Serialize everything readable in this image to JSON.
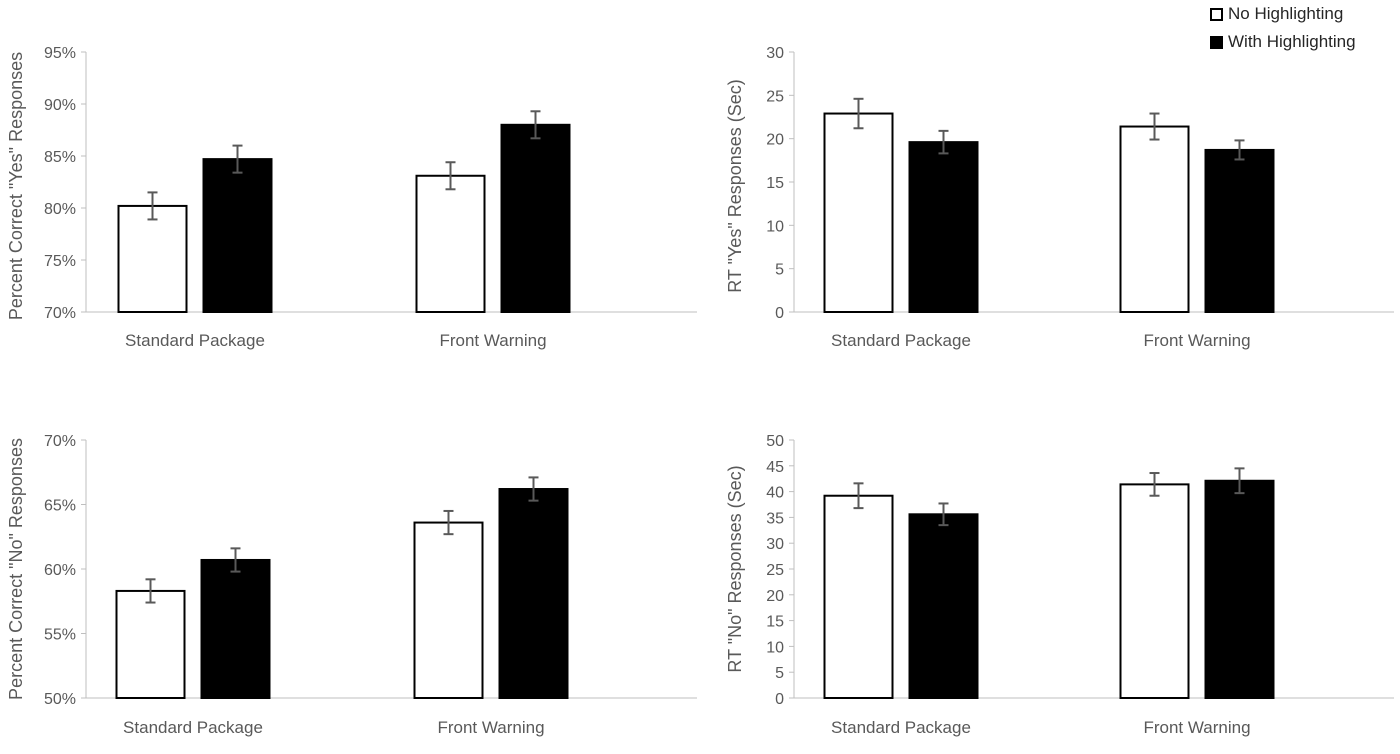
{
  "legend": {
    "no_highlighting": "No Highlighting",
    "with_highlighting": "With Highlighting",
    "no_highlighting_color": "#ffffff",
    "with_highlighting_color": "#000000"
  },
  "chart_data": [
    {
      "type": "bar",
      "ylabel": "Percent Correct \"Yes\" Responses",
      "categories": [
        "Standard Package",
        "Front Warning"
      ],
      "ylim": [
        70,
        95
      ],
      "yticks": [
        "70%",
        "75%",
        "80%",
        "85%",
        "90%",
        "95%"
      ],
      "tick_values": [
        70,
        75,
        80,
        85,
        90,
        95
      ],
      "series": [
        {
          "name": "No Highlighting",
          "values": [
            80.2,
            83.1
          ],
          "errors": [
            1.3,
            1.3
          ]
        },
        {
          "name": "With Highlighting",
          "values": [
            84.7,
            88.0
          ],
          "errors": [
            1.3,
            1.3
          ]
        }
      ]
    },
    {
      "type": "bar",
      "ylabel": "RT \"Yes\" Responses (Sec)",
      "categories": [
        "Standard Package",
        "Front Warning"
      ],
      "ylim": [
        0,
        30
      ],
      "yticks": [
        "0",
        "5",
        "10",
        "15",
        "20",
        "25",
        "30"
      ],
      "tick_values": [
        0,
        5,
        10,
        15,
        20,
        25,
        30
      ],
      "series": [
        {
          "name": "No Highlighting",
          "values": [
            22.9,
            21.4
          ],
          "errors": [
            1.7,
            1.5
          ]
        },
        {
          "name": "With Highlighting",
          "values": [
            19.6,
            18.7
          ],
          "errors": [
            1.3,
            1.1
          ]
        }
      ]
    },
    {
      "type": "bar",
      "ylabel": "Percent Correct \"No\" Responses",
      "categories": [
        "Standard Package",
        "Front Warning"
      ],
      "ylim": [
        50,
        70
      ],
      "yticks": [
        "50%",
        "55%",
        "60%",
        "65%",
        "70%"
      ],
      "tick_values": [
        50,
        55,
        60,
        65,
        70
      ],
      "series": [
        {
          "name": "No Highlighting",
          "values": [
            58.3,
            63.6
          ],
          "errors": [
            0.9,
            0.9
          ]
        },
        {
          "name": "With Highlighting",
          "values": [
            60.7,
            66.2
          ],
          "errors": [
            0.9,
            0.9
          ]
        }
      ]
    },
    {
      "type": "bar",
      "ylabel": "RT \"No\" Responses (Sec)",
      "categories": [
        "Standard Package",
        "Front Warning"
      ],
      "ylim": [
        0,
        50
      ],
      "yticks": [
        "0",
        "5",
        "10",
        "15",
        "20",
        "25",
        "30",
        "35",
        "40",
        "45",
        "50"
      ],
      "tick_values": [
        0,
        5,
        10,
        15,
        20,
        25,
        30,
        35,
        40,
        45,
        50
      ],
      "series": [
        {
          "name": "No Highlighting",
          "values": [
            39.2,
            41.4
          ],
          "errors": [
            2.4,
            2.2
          ]
        },
        {
          "name": "With Highlighting",
          "values": [
            35.6,
            42.1
          ],
          "errors": [
            2.1,
            2.4
          ]
        }
      ]
    }
  ]
}
